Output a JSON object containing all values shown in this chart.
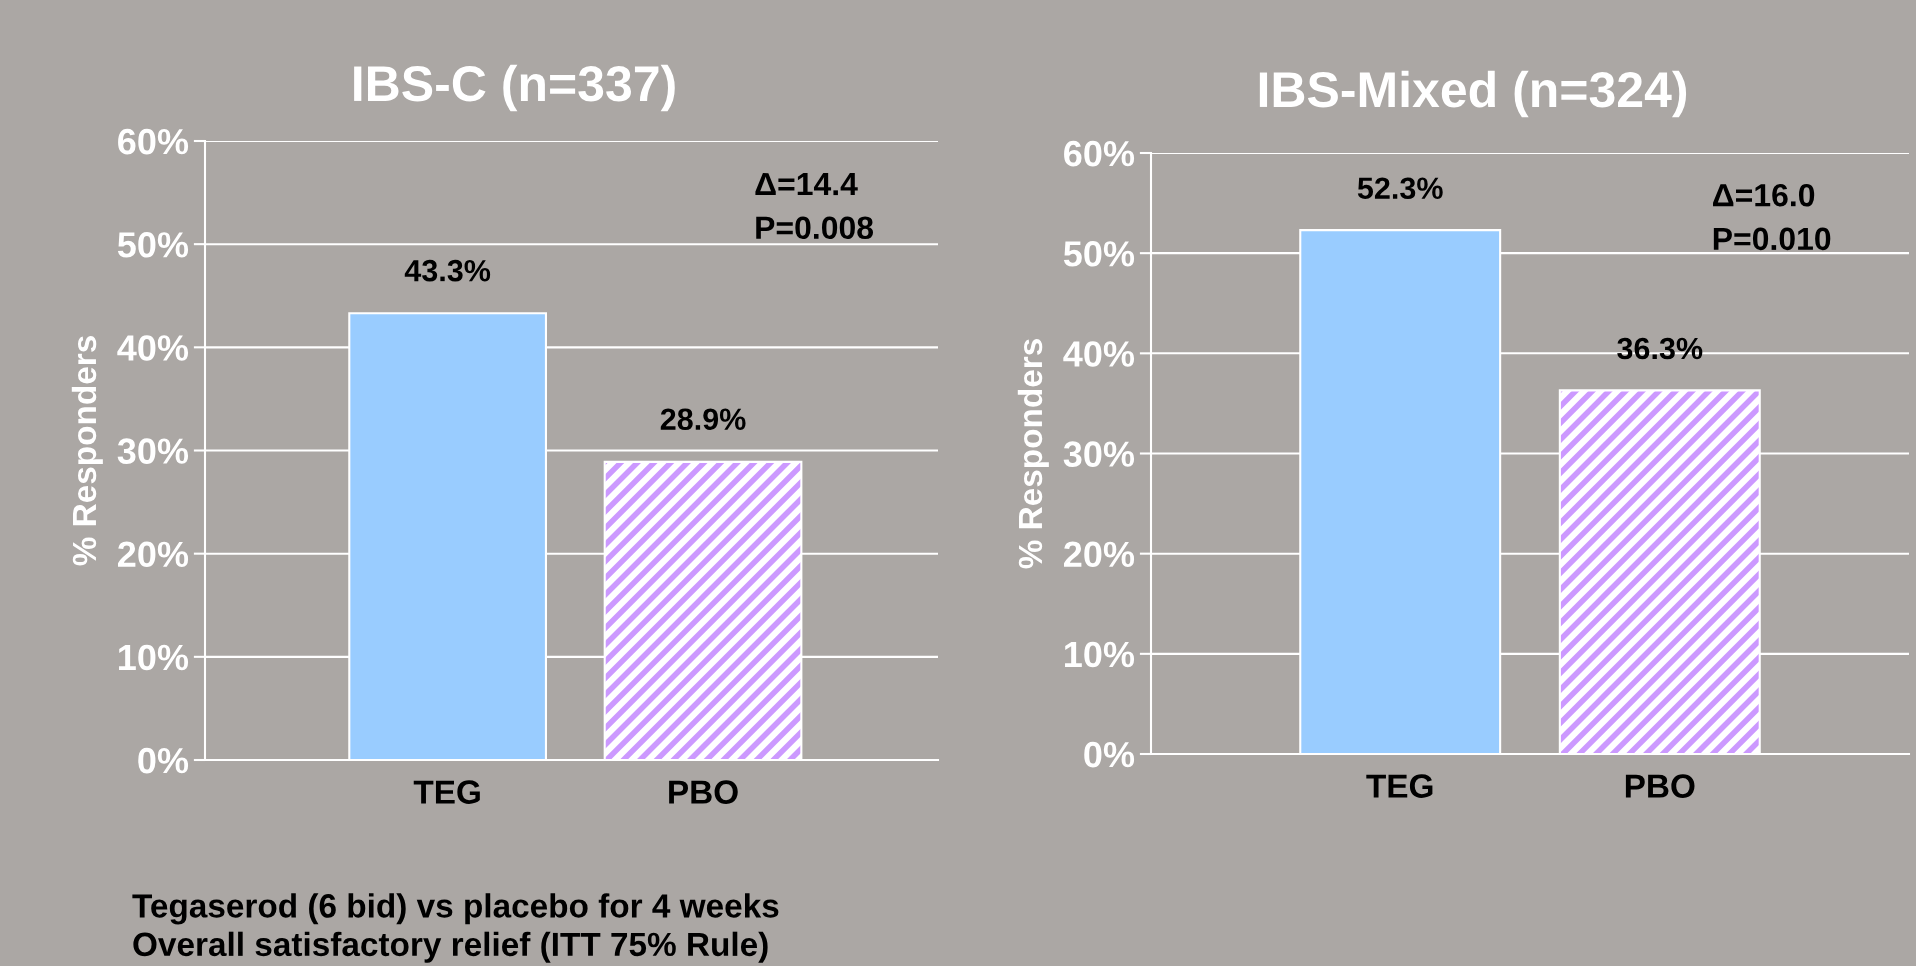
{
  "chart_data": [
    {
      "type": "bar",
      "title": "IBS-C (n=337)",
      "ylabel": "% Responders",
      "categories": [
        "TEG",
        "PBO"
      ],
      "values": [
        43.3,
        28.9
      ],
      "colors": [
        "#99ccff",
        "#cc99ff"
      ],
      "value_labels": [
        "43.3%",
        "28.9%"
      ],
      "ylim": [
        0,
        60
      ],
      "yticks": [
        {
          "value": 0,
          "label": "0%"
        },
        {
          "value": 10,
          "label": "10%"
        },
        {
          "value": 20,
          "label": "20%"
        },
        {
          "value": 30,
          "label": "30%"
        },
        {
          "value": 40,
          "label": "40%"
        },
        {
          "value": 50,
          "label": "50%"
        },
        {
          "value": 60,
          "label": "60%"
        }
      ],
      "grid": "y",
      "legend": false,
      "annotations": [
        "Δ=14.4\nP=0.008",
        "Tegaserod (6 bid) vs placebo for 4 weeks\nOverall satisfactory relief (ITT 75% Rule)"
      ]
    },
    {
      "type": "bar",
      "title": "IBS-Mixed (n=324)",
      "ylabel": "% Responders",
      "categories": [
        "TEG",
        "PBO"
      ],
      "values": [
        52.3,
        36.3
      ],
      "colors": [
        "#99ccff",
        "#cc99ff"
      ],
      "value_labels": [
        "52.3%",
        "36.3%"
      ],
      "ylim": [
        0,
        60
      ],
      "yticks": [
        {
          "value": 0,
          "label": "0%"
        },
        {
          "value": 10,
          "label": "10%"
        },
        {
          "value": 20,
          "label": "20%"
        },
        {
          "value": 30,
          "label": "30%"
        },
        {
          "value": 40,
          "label": "40%"
        },
        {
          "value": 50,
          "label": "50%"
        },
        {
          "value": 60,
          "label": "60%"
        }
      ],
      "grid": "y",
      "legend": false,
      "annotations": [
        "Δ=16.0\nP=0.010"
      ]
    }
  ]
}
